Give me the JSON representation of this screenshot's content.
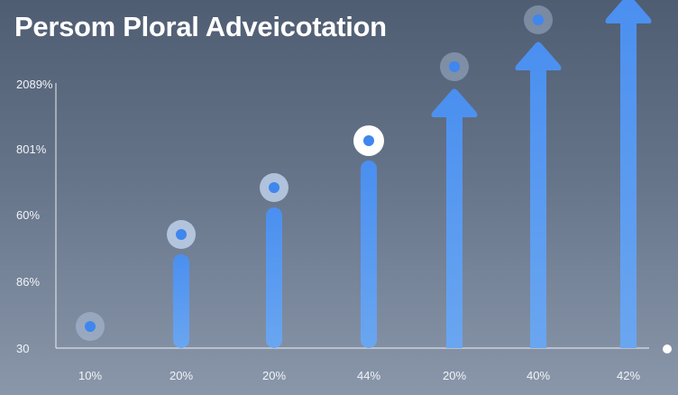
{
  "chart_data": {
    "type": "bar",
    "title": "Persom Ploral Adveicotation",
    "xlabel": "",
    "ylabel": "",
    "y_tick_labels": [
      "30",
      "86%",
      "60%",
      "801%",
      "2089%"
    ],
    "categories": [
      "10%",
      "20%",
      "20%",
      "44%",
      "20%",
      "40%",
      "42%"
    ],
    "values": [
      0,
      1,
      2,
      3,
      4,
      5,
      6
    ],
    "ylim": [
      0,
      6
    ],
    "grid": false,
    "legend": "none",
    "arrowheads": [
      false,
      false,
      false,
      false,
      true,
      true,
      true
    ],
    "highlighted_marker": 3,
    "colors": {
      "bar_top": "#4a8ff0",
      "bar_bottom": "#6aa6f0",
      "marker_outer": "#c9dcf5",
      "marker_dot": "#3f86ee",
      "axis": "#eef2f7"
    }
  }
}
